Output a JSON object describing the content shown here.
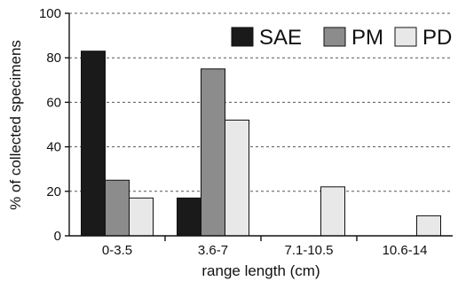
{
  "chart_data": {
    "type": "bar",
    "categories": [
      "0-3.5",
      "3.6-7",
      "7.1-10.5",
      "10.6-14"
    ],
    "series": [
      {
        "name": "SAE",
        "color": "#1a1a1a",
        "values": [
          83,
          17,
          0,
          0
        ]
      },
      {
        "name": "PM",
        "color": "#8c8c8c",
        "values": [
          25,
          75,
          0,
          0
        ]
      },
      {
        "name": "PD",
        "color": "#e8e8e8",
        "values": [
          17,
          52,
          22,
          9
        ]
      }
    ],
    "title": "",
    "xlabel": "range length (cm)",
    "ylabel": "% of collected specimens",
    "ylim": [
      0,
      100
    ],
    "yticks": [
      0,
      20,
      40,
      60,
      80,
      100
    ],
    "grid": true,
    "legend_position": "top-right"
  }
}
